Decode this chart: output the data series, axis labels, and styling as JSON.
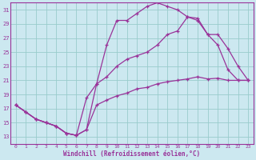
{
  "xlabel": "Windchill (Refroidissement éolien,°C)",
  "bg_color": "#cce8f0",
  "line_color": "#993399",
  "grid_color": "#99cccc",
  "xlim": [
    -0.5,
    23.5
  ],
  "ylim": [
    12,
    32
  ],
  "yticks": [
    13,
    15,
    17,
    19,
    21,
    23,
    25,
    27,
    29,
    31
  ],
  "xticks": [
    0,
    1,
    2,
    3,
    4,
    5,
    6,
    7,
    8,
    9,
    10,
    11,
    12,
    13,
    14,
    15,
    16,
    17,
    18,
    19,
    20,
    21,
    22,
    23
  ],
  "line1_x": [
    0,
    1,
    2,
    3,
    4,
    5,
    6,
    7,
    8,
    9,
    10,
    11,
    12,
    13,
    14,
    15,
    16,
    17,
    18,
    19,
    20,
    21,
    22,
    23
  ],
  "line1_y": [
    17.5,
    16.5,
    15.5,
    15.0,
    14.5,
    13.5,
    13.2,
    14.0,
    17.5,
    18.2,
    18.8,
    19.2,
    19.8,
    20.0,
    20.5,
    20.8,
    21.0,
    21.2,
    21.5,
    21.2,
    21.3,
    21.0,
    21.0,
    21.0
  ],
  "line2_x": [
    0,
    1,
    2,
    3,
    4,
    5,
    6,
    7,
    8,
    9,
    10,
    11,
    12,
    13,
    14,
    15,
    16,
    17,
    18,
    19,
    20,
    21,
    22,
    23
  ],
  "line2_y": [
    17.5,
    16.5,
    15.5,
    15.0,
    14.5,
    13.5,
    13.2,
    18.5,
    20.5,
    26.0,
    29.5,
    29.5,
    30.5,
    31.5,
    32.0,
    31.5,
    31.0,
    30.0,
    29.8,
    27.5,
    27.5,
    25.5,
    23.0,
    21.0
  ],
  "line3_x": [
    0,
    1,
    2,
    3,
    4,
    5,
    6,
    7,
    8,
    9,
    10,
    11,
    12,
    13,
    14,
    15,
    16,
    17,
    18,
    19,
    20,
    21,
    22,
    23
  ],
  "line3_y": [
    17.5,
    16.5,
    15.5,
    15.0,
    14.5,
    13.5,
    13.2,
    14.0,
    20.5,
    21.5,
    23.0,
    24.0,
    24.5,
    25.0,
    26.0,
    27.5,
    28.0,
    30.0,
    29.5,
    27.5,
    26.0,
    22.5,
    21.0,
    21.0
  ]
}
